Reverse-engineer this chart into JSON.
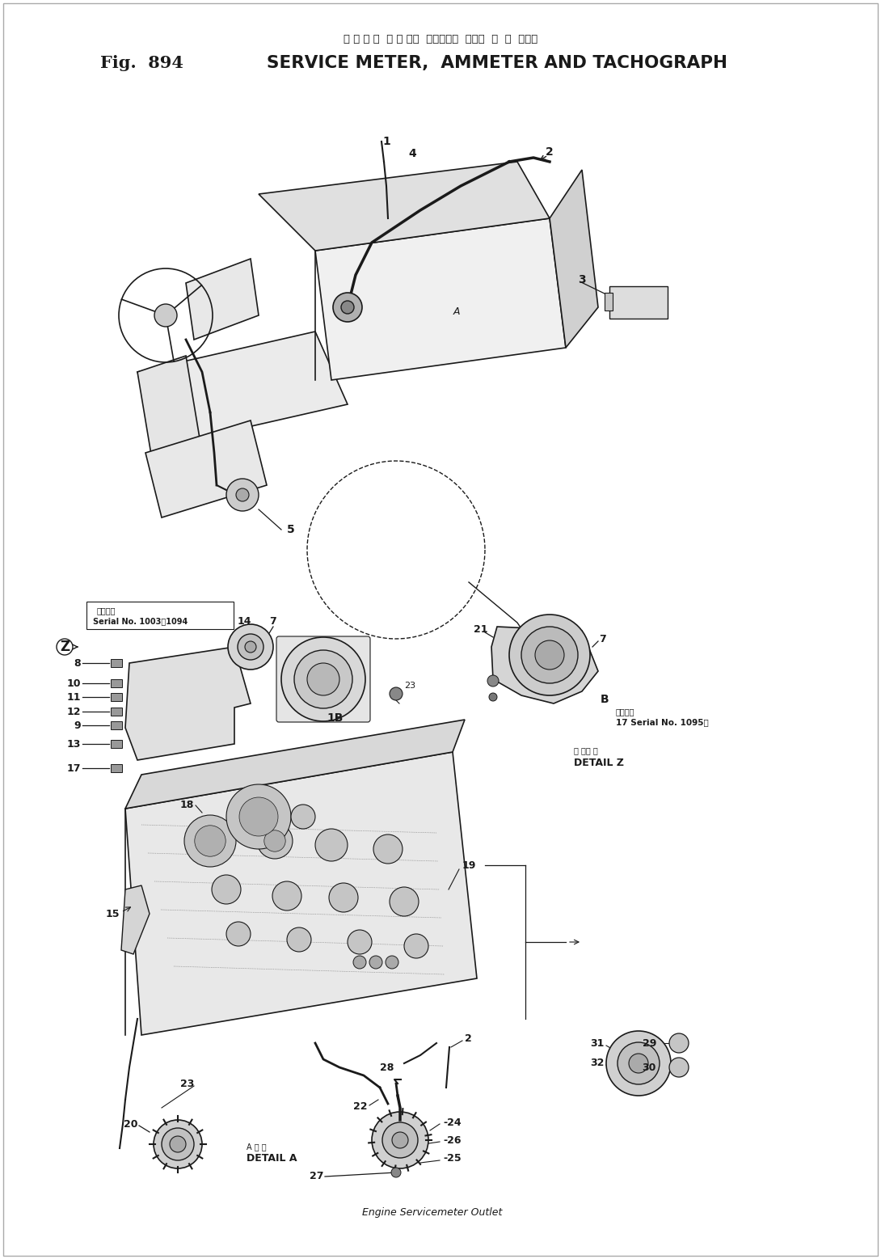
{
  "title_japanese": "サ ー ビ ス  メ ー タ，  アンメータ  および  タ  コ  グラフ",
  "title_english": "SERVICE METER,  AMMETER AND TACHOGRAPH",
  "fig_label": "Fig.  894",
  "background_color": "#ffffff",
  "line_color": "#1a1a1a",
  "figsize": [
    10.9,
    15.57
  ],
  "dpi": 100
}
